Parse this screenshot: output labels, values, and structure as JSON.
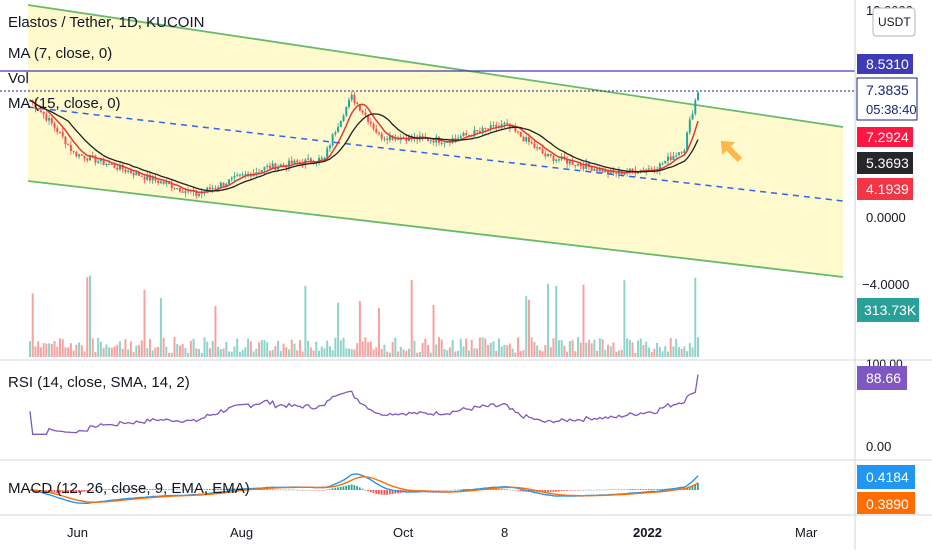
{
  "header": {
    "symbol_title": "Elastos / Tether, 1D, KUCOIN",
    "currency_badge": "USDT"
  },
  "indicator_labels": {
    "ma7": "MA (7, close, 0)",
    "vol": "Vol",
    "ma15": "MA (15, close, 0)",
    "rsi": "RSI (14, close, SMA, 14, 2)",
    "macd": "MACD (12, 26, close, 9, EMA, EMA)"
  },
  "price_axis": {
    "ticks": [
      {
        "value": 12,
        "label": "12.0000"
      },
      {
        "value": 0,
        "label": "0.0000"
      },
      {
        "value": -4,
        "label": "−4.0000"
      }
    ],
    "badges": [
      {
        "name": "high-line-badge",
        "value": 8.531,
        "label": "8.5310",
        "color": "#3d3bb5"
      },
      {
        "name": "last-price-badge",
        "value": 7.3835,
        "label": "7.3835",
        "sublabel": "05:38:40",
        "color": "#ffffff",
        "text_color": "#1a237e"
      },
      {
        "name": "ma7-badge",
        "value": 7.2924,
        "label": "7.2924",
        "color": "#ff1744"
      },
      {
        "name": "ma15-badge",
        "value": 5.3693,
        "label": "5.3693",
        "color": "#26272b"
      },
      {
        "name": "ma-red-badge",
        "value": 4.1939,
        "label": "4.1939",
        "color": "#f23645"
      }
    ]
  },
  "volume_badge": {
    "label": "313.73K",
    "color": "#2aa198"
  },
  "rsi_axis": {
    "top_label": "100.00",
    "bottom_label": "0.00",
    "badge": {
      "label": "88.66",
      "color": "#7e57c2"
    }
  },
  "macd_axis": {
    "badges": [
      {
        "label": "0.4184",
        "color": "#2196f3"
      },
      {
        "label": "0.3890",
        "color": "#ff6d00"
      }
    ]
  },
  "time_axis": {
    "labels": [
      "Jun",
      "Aug",
      "Oct",
      "8",
      "2022",
      "Mar"
    ]
  },
  "colors": {
    "channel_fill": "#fff9c4",
    "channel_line": "#66bb6a",
    "median_dash": "#2962ff",
    "candle_up": "#26a69a",
    "candle_down": "#ef5350",
    "ma7_line": "#e53935",
    "ma15_line": "#212121",
    "rsi_line": "#7e57c2",
    "macd_line": "#2196f3",
    "signal_line": "#ff6d00",
    "arrow": "#ffb74d",
    "high_line": "#3d3bb5"
  },
  "chart_data": {
    "type": "candlestick",
    "price_scale_type": "log",
    "key_points": [
      {
        "date": "2021-05-20",
        "close": 6.8
      },
      {
        "date": "2021-06-05",
        "close": 4.3
      },
      {
        "date": "2021-07-01",
        "close": 3.5
      },
      {
        "date": "2021-07-20",
        "close": 3.0
      },
      {
        "date": "2021-08-15",
        "close": 3.8
      },
      {
        "date": "2021-09-05",
        "close": 4.1
      },
      {
        "date": "2021-09-15",
        "close": 7.0
      },
      {
        "date": "2021-09-25",
        "close": 5.0
      },
      {
        "date": "2021-10-20",
        "close": 4.8
      },
      {
        "date": "2021-11-10",
        "close": 5.5
      },
      {
        "date": "2021-11-25",
        "close": 4.2
      },
      {
        "date": "2021-12-20",
        "close": 3.6
      },
      {
        "date": "2022-01-05",
        "close": 3.8
      },
      {
        "date": "2022-01-15",
        "close": 4.5
      },
      {
        "date": "2022-01-20",
        "close": 7.38
      }
    ],
    "last_price": 7.3835,
    "high_line": 8.531,
    "rsi_last": 88.66,
    "macd_last": 0.4184,
    "signal_last": 0.389,
    "volume_last": "313.73K"
  }
}
